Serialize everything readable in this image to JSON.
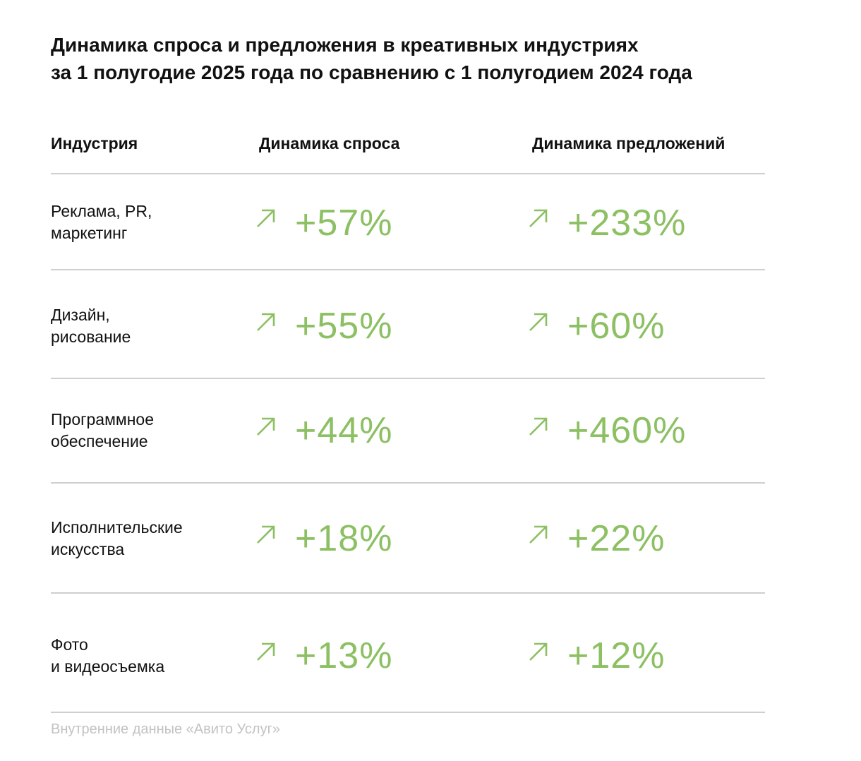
{
  "title": {
    "line1": "Динамика спроса и предложения в креативных индустриях",
    "line2": "за 1 полугодие 2025 года по сравнению с 1 полугодием 2024 года"
  },
  "headers": {
    "industry": "Индустрия",
    "demand": "Динамика спроса",
    "supply": "Динамика предложений"
  },
  "colors": {
    "accent": "#8cc063",
    "text": "#111111",
    "rule": "#cfcfcf",
    "source": "#c2c2c2"
  },
  "icons": {
    "trend": "arrow-up-right-icon"
  },
  "rows": [
    {
      "label": "Реклама, PR,\nмаркетинг",
      "demand": "+57%",
      "supply": "+233%"
    },
    {
      "label": "Дизайн,\nрисование",
      "demand": "+55%",
      "supply": "+60%"
    },
    {
      "label": "Программное\nобеспечение",
      "demand": "+44%",
      "supply": "+460%"
    },
    {
      "label": "Исполнительские\nискусства",
      "demand": "+18%",
      "supply": "+22%"
    },
    {
      "label": "Фото\nи видеосъемка",
      "demand": "+13%",
      "supply": "+12%"
    }
  ],
  "chart_data": {
    "type": "table",
    "title": "Динамика спроса и предложения в креативных индустриях за 1 полугодие 2025 года по сравнению с 1 полугодием 2024 года",
    "columns": [
      "Индустрия",
      "Динамика спроса",
      "Динамика предложений"
    ],
    "categories": [
      "Реклама, PR, маркетинг",
      "Дизайн, рисование",
      "Программное обеспечение",
      "Исполнительские искусства",
      "Фото и видеосъемка"
    ],
    "series": [
      {
        "name": "Динамика спроса",
        "values": [
          57,
          55,
          44,
          18,
          13
        ],
        "unit": "%"
      },
      {
        "name": "Динамика предложений",
        "values": [
          233,
          60,
          460,
          22,
          12
        ],
        "unit": "%"
      }
    ]
  },
  "source": "Внутренние данные «Авито Услуг»"
}
